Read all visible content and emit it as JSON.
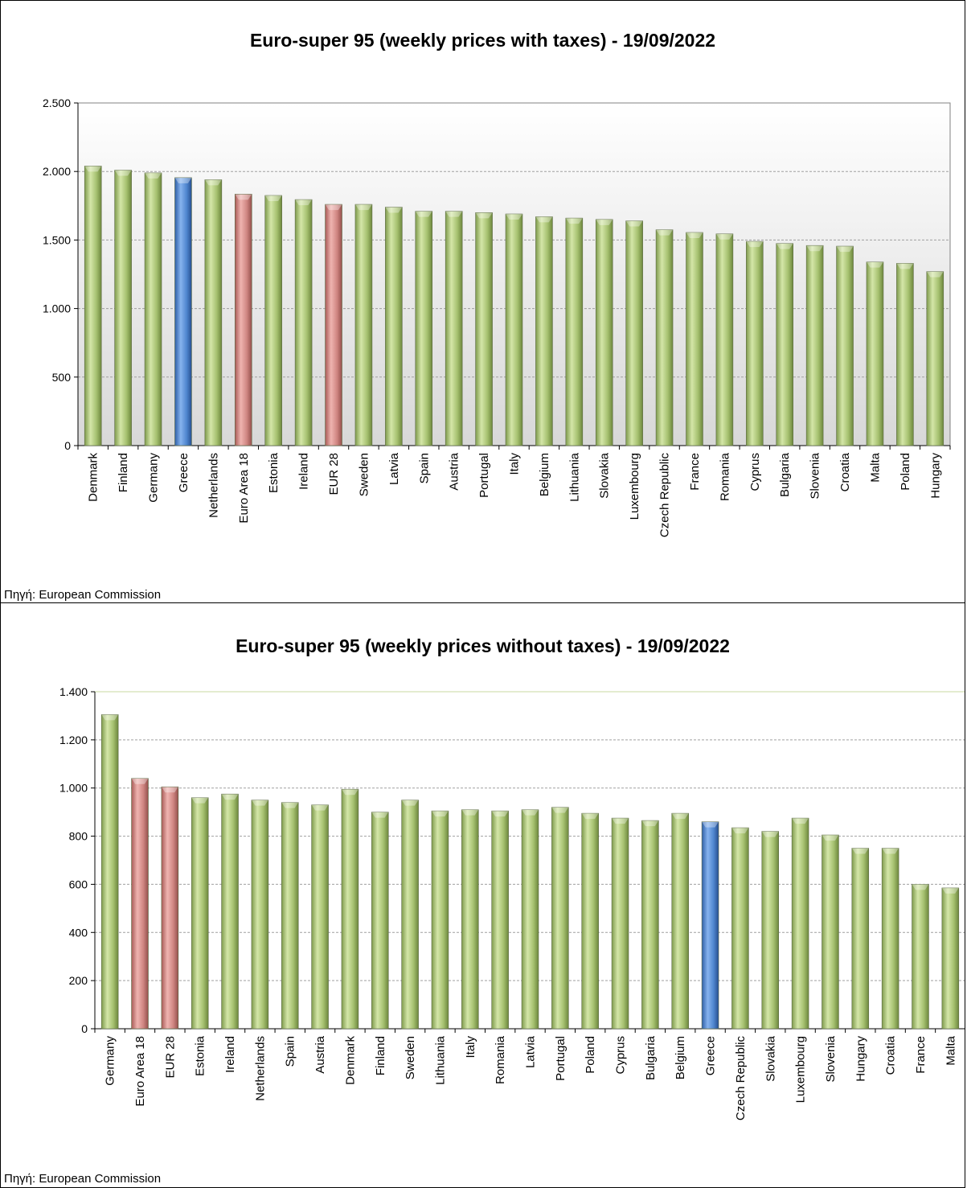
{
  "colors": {
    "normal": "#b8cf8a",
    "aggregate": "#d98a86",
    "highlight": "#4a7fc9"
  },
  "chart_data": [
    {
      "type": "bar",
      "title": "Euro-super 95 (weekly prices with taxes) - 19/09/2022",
      "source": "Πηγή: European Commission",
      "ylim": [
        0,
        2500
      ],
      "yticks": [
        0,
        500,
        1000,
        1500,
        2000,
        2500
      ],
      "ytick_labels": [
        "0",
        "500",
        "1.000",
        "1.500",
        "2.000",
        "2.500"
      ],
      "grid": true,
      "categories": [
        "Denmark",
        "Finland",
        "Germany",
        "Greece",
        "Netherlands",
        "Euro Area 18",
        "Estonia",
        "Ireland",
        "EUR 28",
        "Sweden",
        "Latvia",
        "Spain",
        "Austria",
        "Portugal",
        "Italy",
        "Belgium",
        "Lithuania",
        "Slovakia",
        "Luxembourg",
        "Czech Republic",
        "France",
        "Romania",
        "Cyprus",
        "Bulgaria",
        "Slovenia",
        "Croatia",
        "Malta",
        "Poland",
        "Hungary"
      ],
      "values": [
        2040,
        2010,
        1990,
        1955,
        1940,
        1835,
        1825,
        1795,
        1760,
        1760,
        1740,
        1710,
        1710,
        1700,
        1690,
        1670,
        1660,
        1650,
        1640,
        1575,
        1555,
        1545,
        1490,
        1475,
        1460,
        1455,
        1340,
        1330,
        1270
      ],
      "kinds": [
        "n",
        "n",
        "n",
        "h",
        "n",
        "a",
        "n",
        "n",
        "a",
        "n",
        "n",
        "n",
        "n",
        "n",
        "n",
        "n",
        "n",
        "n",
        "n",
        "n",
        "n",
        "n",
        "n",
        "n",
        "n",
        "n",
        "n",
        "n",
        "n"
      ]
    },
    {
      "type": "bar",
      "title": "Euro-super 95 (weekly prices without taxes) - 19/09/2022",
      "source": "Πηγή: European Commission",
      "ylim": [
        0,
        1400
      ],
      "yticks": [
        0,
        200,
        400,
        600,
        800,
        1000,
        1200,
        1400
      ],
      "ytick_labels": [
        "0",
        "200",
        "400",
        "600",
        "800",
        "1.000",
        "1.200",
        "1.400"
      ],
      "grid": true,
      "categories": [
        "Germany",
        "Euro Area 18",
        "EUR 28",
        "Estonia",
        "Ireland",
        "Netherlands",
        "Spain",
        "Austria",
        "Denmark",
        "Finland",
        "Sweden",
        "Lithuania",
        "Italy",
        "Romania",
        "Latvia",
        "Portugal",
        "Poland",
        "Cyprus",
        "Bulgaria",
        "Belgium",
        "Greece",
        "Czech Republic",
        "Slovakia",
        "Luxembourg",
        "Slovenia",
        "Hungary",
        "Croatia",
        "France",
        "Malta"
      ],
      "values": [
        1305,
        1040,
        1005,
        960,
        975,
        950,
        940,
        930,
        995,
        900,
        950,
        905,
        910,
        905,
        910,
        920,
        895,
        875,
        865,
        895,
        860,
        835,
        820,
        875,
        805,
        750,
        750,
        600,
        585
      ],
      "kinds": [
        "n",
        "a",
        "a",
        "n",
        "n",
        "n",
        "n",
        "n",
        "n",
        "n",
        "n",
        "n",
        "n",
        "n",
        "n",
        "n",
        "n",
        "n",
        "n",
        "n",
        "h",
        "n",
        "n",
        "n",
        "n",
        "n",
        "n",
        "n",
        "n"
      ]
    }
  ]
}
